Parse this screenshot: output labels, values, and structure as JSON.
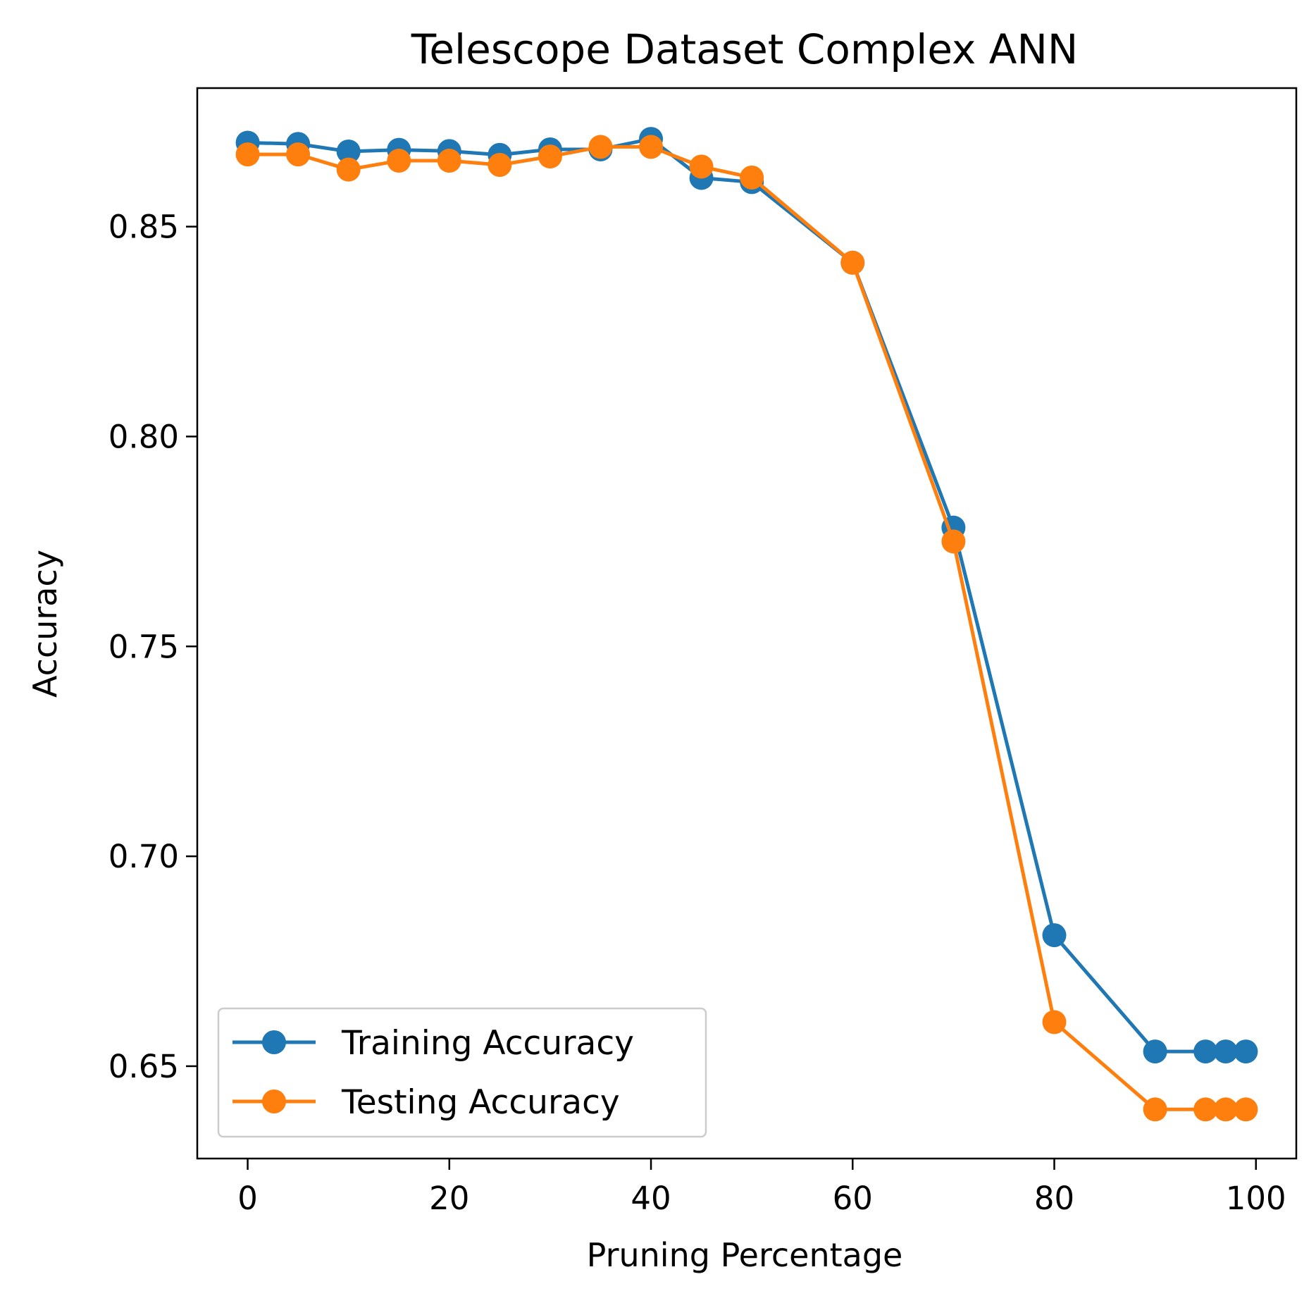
{
  "chart_data": {
    "type": "line",
    "title": "Telescope Dataset Complex ANN",
    "xlabel": "Pruning Percentage",
    "ylabel": "Accuracy",
    "xlim": [
      -5,
      104
    ],
    "ylim": [
      0.628,
      0.883
    ],
    "xticks": [
      0,
      20,
      40,
      60,
      80,
      100
    ],
    "xtick_labels": [
      "0",
      "20",
      "40",
      "60",
      "80",
      "100"
    ],
    "yticks": [
      0.65,
      0.7,
      0.75,
      0.8,
      0.85
    ],
    "ytick_labels": [
      "0.65",
      "0.70",
      "0.75",
      "0.80",
      "0.85"
    ],
    "grid": false,
    "legend_position": "lower-left",
    "x": [
      0,
      5,
      10,
      15,
      20,
      25,
      30,
      35,
      40,
      45,
      50,
      60,
      70,
      80,
      90,
      95,
      97,
      99
    ],
    "series": [
      {
        "name": "Training Accuracy",
        "color": "#1f77b4",
        "marker": "circle",
        "values": [
          0.87,
          0.8697,
          0.8679,
          0.8683,
          0.868,
          0.8671,
          0.8684,
          0.8684,
          0.8709,
          0.8616,
          0.8606,
          0.8414,
          0.7783,
          0.6812,
          0.6535,
          0.6535,
          0.6535,
          0.6535
        ]
      },
      {
        "name": "Testing Accuracy",
        "color": "#ff7f0e",
        "marker": "circle",
        "values": [
          0.8672,
          0.8672,
          0.8636,
          0.8657,
          0.8657,
          0.8647,
          0.8667,
          0.869,
          0.869,
          0.8643,
          0.8617,
          0.8414,
          0.775,
          0.6605,
          0.6397,
          0.6397,
          0.6397,
          0.6397
        ]
      }
    ]
  }
}
